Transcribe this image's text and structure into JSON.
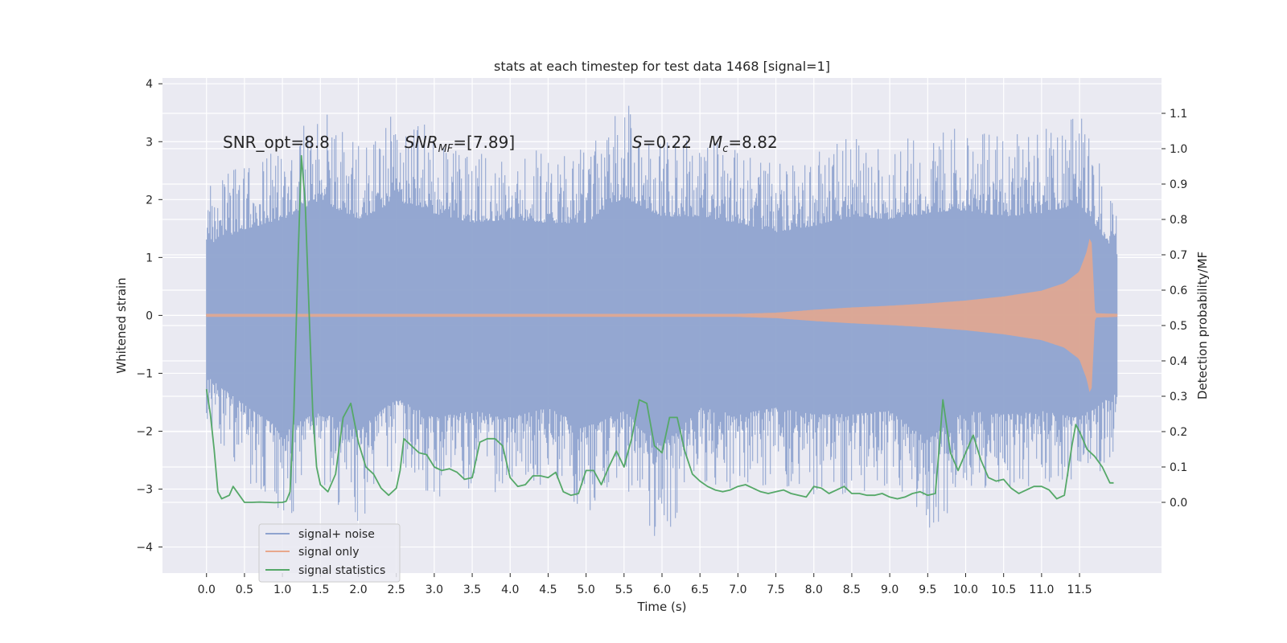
{
  "chart_data": {
    "type": "line",
    "title": "stats at each timestep for test data 1468 [signal=1]",
    "xlabel": "Time (s)",
    "ylabel_left": "Whitened strain",
    "ylabel_right": "Detection probability/MF",
    "xlim": [
      -0.58,
      12.58
    ],
    "ylim_left": [
      -4.45,
      4.1
    ],
    "ylim_right": [
      -0.2,
      1.2
    ],
    "grid": true,
    "legend_position": "lower-left",
    "x_ticks": [
      "0.0",
      "0.5",
      "1.0",
      "1.5",
      "2.0",
      "2.5",
      "3.0",
      "3.5",
      "4.0",
      "4.5",
      "5.0",
      "5.5",
      "6.0",
      "6.5",
      "7.0",
      "7.5",
      "8.0",
      "8.5",
      "9.0",
      "9.5",
      "10.0",
      "10.5",
      "11.0",
      "11.5"
    ],
    "y_left_ticks": [
      "4",
      "3",
      "2",
      "1",
      "0",
      "−1",
      "−2",
      "−3",
      "−4"
    ],
    "y_right_ticks": [
      "1.1",
      "1.0",
      "0.9",
      "0.8",
      "0.7",
      "0.6",
      "0.5",
      "0.4",
      "0.3",
      "0.2",
      "0.1",
      "0.0"
    ],
    "annotations": {
      "snr_opt": "SNR_opt=8.8",
      "snr_mf_base": "SNR",
      "snr_mf_sub": "MF",
      "snr_mf_value": "=[7.89]",
      "s_symbol": "S",
      "s_value": "=0.22",
      "mc_symbol": "M",
      "mc_sub": "c",
      "mc_value": "=8.82"
    },
    "series": [
      {
        "name": "signal+ noise",
        "color": "#8fa3cf",
        "description_envelope": {
          "x": [
            0.0,
            0.5,
            1.0,
            1.5,
            2.0,
            2.5,
            3.0,
            3.5,
            4.0,
            4.5,
            5.0,
            5.5,
            6.0,
            6.5,
            7.0,
            7.5,
            8.0,
            8.5,
            9.0,
            9.5,
            10.0,
            10.5,
            11.0,
            11.5,
            12.0
          ],
          "upper": [
            2.2,
            2.7,
            3.0,
            3.6,
            3.0,
            3.6,
            3.2,
            2.9,
            3.0,
            2.9,
            2.9,
            3.7,
            3.1,
            3.1,
            2.9,
            2.6,
            2.8,
            3.1,
            3.0,
            3.2,
            3.3,
            3.1,
            3.2,
            3.5,
            1.9
          ],
          "lower": [
            -1.9,
            -2.8,
            -3.6,
            -3.0,
            -3.6,
            -2.6,
            -3.2,
            -3.0,
            -3.2,
            -2.9,
            -3.5,
            -3.0,
            -4.1,
            -2.9,
            -3.1,
            -2.9,
            -3.1,
            -3.1,
            -3.0,
            -3.9,
            -3.0,
            -3.1,
            -3.0,
            -3.2,
            -2.4
          ]
        }
      },
      {
        "name": "signal only",
        "color": "#e8a88c",
        "description_envelope": {
          "x": [
            0.0,
            7.0,
            7.5,
            8.0,
            8.5,
            9.0,
            9.5,
            10.0,
            10.5,
            11.0,
            11.3,
            11.5,
            11.6,
            11.65,
            11.7,
            12.0
          ],
          "amplitude": [
            0.02,
            0.02,
            0.04,
            0.09,
            0.13,
            0.16,
            0.2,
            0.25,
            0.32,
            0.42,
            0.55,
            0.75,
            1.1,
            1.4,
            0.03,
            0.02
          ]
        }
      },
      {
        "name": "signal statistics",
        "color": "#55a868",
        "axis": "right",
        "x": [
          0.0,
          0.05,
          0.1,
          0.15,
          0.2,
          0.3,
          0.35,
          0.4,
          0.5,
          0.6,
          0.7,
          0.8,
          0.9,
          1.0,
          1.05,
          1.1,
          1.15,
          1.2,
          1.25,
          1.3,
          1.35,
          1.4,
          1.45,
          1.5,
          1.6,
          1.7,
          1.8,
          1.9,
          2.0,
          2.1,
          2.2,
          2.3,
          2.4,
          2.5,
          2.55,
          2.6,
          2.7,
          2.8,
          2.9,
          3.0,
          3.1,
          3.2,
          3.3,
          3.4,
          3.5,
          3.6,
          3.7,
          3.8,
          3.9,
          4.0,
          4.1,
          4.2,
          4.3,
          4.4,
          4.5,
          4.6,
          4.7,
          4.8,
          4.9,
          5.0,
          5.1,
          5.2,
          5.3,
          5.4,
          5.5,
          5.6,
          5.7,
          5.8,
          5.9,
          6.0,
          6.1,
          6.2,
          6.3,
          6.4,
          6.5,
          6.6,
          6.7,
          6.8,
          6.9,
          7.0,
          7.1,
          7.2,
          7.3,
          7.4,
          7.5,
          7.6,
          7.7,
          7.8,
          7.9,
          8.0,
          8.1,
          8.2,
          8.3,
          8.4,
          8.5,
          8.6,
          8.7,
          8.8,
          8.9,
          9.0,
          9.1,
          9.2,
          9.3,
          9.4,
          9.5,
          9.6,
          9.65,
          9.7,
          9.8,
          9.9,
          10.0,
          10.1,
          10.2,
          10.3,
          10.4,
          10.5,
          10.6,
          10.7,
          10.8,
          10.9,
          11.0,
          11.1,
          11.2,
          11.3,
          11.4,
          11.45,
          11.5,
          11.6,
          11.7,
          11.8,
          11.9,
          11.95
        ],
        "y": [
          0.32,
          0.25,
          0.15,
          0.03,
          0.01,
          0.02,
          0.045,
          0.03,
          0.0,
          0.0,
          0.001,
          0.0,
          -0.001,
          0.0,
          0.003,
          0.03,
          0.25,
          0.65,
          0.98,
          0.85,
          0.55,
          0.25,
          0.1,
          0.05,
          0.03,
          0.08,
          0.24,
          0.28,
          0.17,
          0.1,
          0.08,
          0.04,
          0.02,
          0.04,
          0.09,
          0.18,
          0.16,
          0.14,
          0.135,
          0.1,
          0.09,
          0.095,
          0.085,
          0.065,
          0.07,
          0.17,
          0.18,
          0.18,
          0.16,
          0.07,
          0.045,
          0.05,
          0.075,
          0.075,
          0.07,
          0.085,
          0.03,
          0.02,
          0.025,
          0.09,
          0.09,
          0.05,
          0.1,
          0.145,
          0.1,
          0.18,
          0.29,
          0.28,
          0.16,
          0.14,
          0.24,
          0.24,
          0.145,
          0.08,
          0.06,
          0.045,
          0.035,
          0.03,
          0.035,
          0.045,
          0.05,
          0.04,
          0.03,
          0.025,
          0.03,
          0.035,
          0.025,
          0.02,
          0.015,
          0.045,
          0.04,
          0.025,
          0.035,
          0.045,
          0.025,
          0.025,
          0.02,
          0.02,
          0.025,
          0.015,
          0.01,
          0.015,
          0.025,
          0.03,
          0.02,
          0.025,
          0.15,
          0.29,
          0.14,
          0.09,
          0.14,
          0.19,
          0.12,
          0.07,
          0.06,
          0.065,
          0.04,
          0.025,
          0.035,
          0.045,
          0.045,
          0.035,
          0.01,
          0.02,
          0.16,
          0.22,
          0.2,
          0.15,
          0.13,
          0.1,
          0.055,
          0.055
        ]
      }
    ]
  }
}
